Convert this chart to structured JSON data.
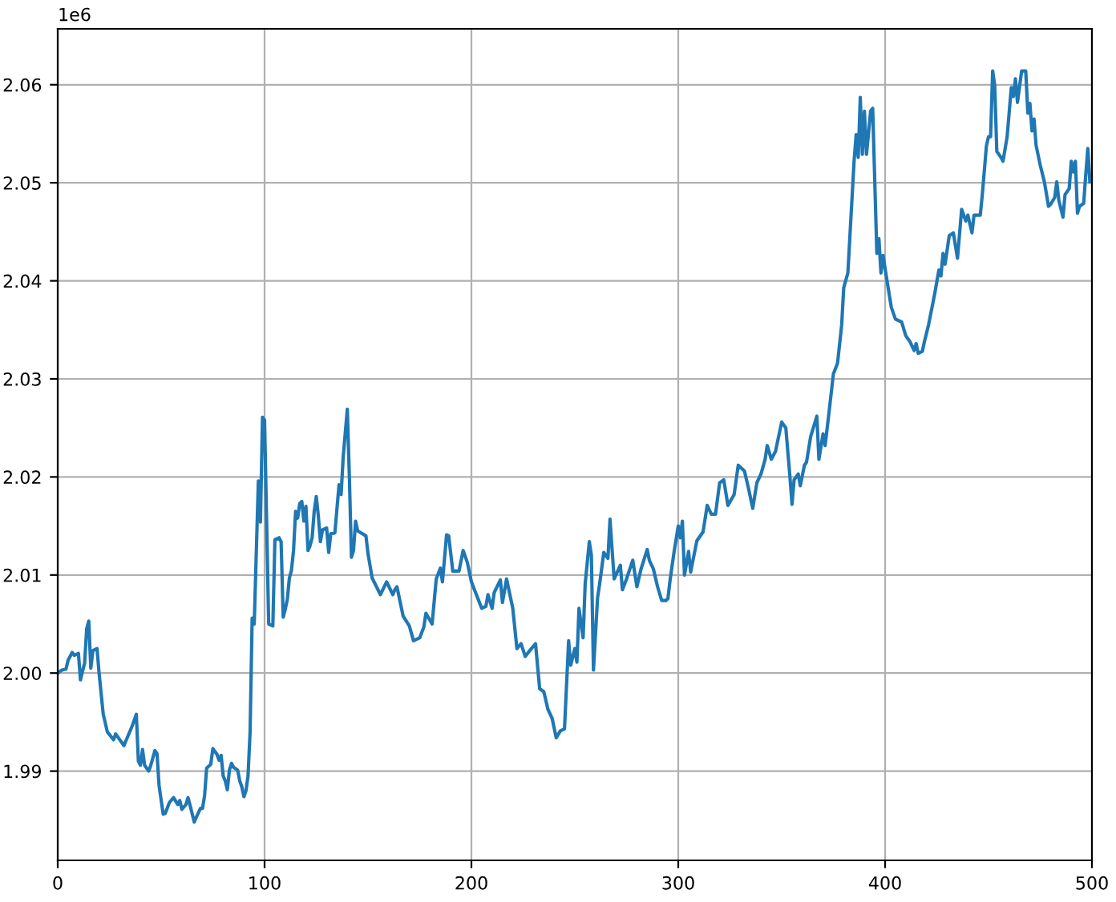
{
  "chart_data": {
    "type": "line",
    "x": [
      0,
      2,
      4,
      5,
      7,
      8,
      10,
      11,
      12,
      13,
      14,
      15,
      16,
      17,
      19,
      20,
      22,
      24,
      27,
      28,
      32,
      36,
      38,
      39,
      40,
      41,
      42,
      44,
      45,
      47,
      48,
      49,
      51,
      52,
      54,
      56,
      58,
      59,
      60,
      62,
      63,
      64,
      66,
      67,
      69,
      70,
      71,
      72,
      74,
      75,
      77,
      78,
      79,
      80,
      81,
      82,
      83,
      84,
      85,
      87,
      88,
      89,
      90,
      91,
      92,
      93,
      94,
      95,
      97,
      98,
      99,
      100,
      102,
      104,
      105,
      107,
      108,
      109,
      110,
      111,
      112,
      113,
      114,
      115,
      116,
      117,
      118,
      119,
      120,
      121,
      122,
      123,
      124,
      125,
      126,
      127,
      128,
      130,
      131,
      132,
      134,
      136,
      137,
      138,
      140,
      141,
      142,
      143,
      144,
      145,
      149,
      150,
      152,
      156,
      159,
      162,
      163,
      164,
      167,
      170,
      172,
      175,
      177,
      178,
      181,
      183,
      185,
      186,
      188,
      189,
      191,
      194,
      196,
      198,
      200,
      202,
      205,
      207,
      208,
      210,
      211,
      214,
      215,
      217,
      220,
      222,
      224,
      226,
      229,
      231,
      233,
      235,
      237,
      239,
      241,
      243,
      245,
      247,
      248,
      250,
      251,
      252,
      254,
      255,
      257,
      258,
      259,
      261,
      262,
      264,
      266,
      267,
      269,
      272,
      273,
      275,
      278,
      280,
      282,
      285,
      286,
      288,
      290,
      292,
      294,
      295,
      296,
      298,
      300,
      301,
      302,
      303,
      305,
      306,
      309,
      312,
      314,
      316,
      318,
      320,
      322,
      324,
      327,
      329,
      332,
      334,
      336,
      338,
      340,
      342,
      343,
      345,
      347,
      350,
      352,
      354,
      355,
      356,
      358,
      359,
      361,
      362,
      364,
      367,
      368,
      370,
      371,
      373,
      375,
      377,
      379,
      380,
      382,
      385,
      386,
      387,
      388,
      389,
      390,
      391,
      393,
      394,
      396,
      397,
      398,
      399,
      401,
      403,
      405,
      408,
      410,
      412,
      414,
      415,
      416,
      418,
      419,
      421,
      424,
      426,
      427,
      428,
      429,
      431,
      433,
      435,
      437,
      439,
      440,
      442,
      443,
      446,
      447,
      449,
      450,
      451,
      452,
      453,
      454,
      456,
      457,
      459,
      461,
      462,
      463,
      464,
      466,
      468,
      469,
      470,
      471,
      472,
      473,
      475,
      477,
      479,
      480,
      482,
      483,
      484,
      486,
      487,
      489,
      490,
      491,
      492,
      493,
      494,
      496,
      497,
      498,
      499
    ],
    "series": [
      {
        "color": "#1f77b4",
        "values": [
          2.0,
          2.0003,
          2.0004,
          2.0013,
          2.0021,
          2.0018,
          2.002,
          1.9993,
          2.0002,
          2.001,
          2.0045,
          2.0053,
          2.0005,
          2.0023,
          2.0025,
          2.0,
          1.9958,
          1.994,
          1.9932,
          1.9938,
          1.9926,
          1.9946,
          1.9958,
          1.991,
          1.9906,
          1.9922,
          1.9906,
          1.99,
          1.9906,
          1.9921,
          1.9918,
          1.9885,
          1.9856,
          1.9857,
          1.9868,
          1.9873,
          1.9866,
          1.987,
          1.9861,
          1.9866,
          1.9873,
          1.9865,
          1.9848,
          1.9853,
          1.9862,
          1.9862,
          1.9875,
          1.9903,
          1.9907,
          1.9923,
          1.9917,
          1.9911,
          1.9916,
          1.9895,
          1.989,
          1.9881,
          1.9901,
          1.9908,
          1.9904,
          1.9901,
          1.989,
          1.9884,
          1.9874,
          1.988,
          1.9895,
          1.994,
          2.0056,
          2.005,
          2.0196,
          2.0154,
          2.0261,
          2.0258,
          2.005,
          2.0048,
          2.0136,
          2.0138,
          2.0134,
          2.0057,
          2.0065,
          2.0075,
          2.0097,
          2.0105,
          2.0125,
          2.0165,
          2.0158,
          2.0173,
          2.0175,
          2.0155,
          2.017,
          2.0125,
          2.013,
          2.0138,
          2.0165,
          2.018,
          2.016,
          2.0134,
          2.0146,
          2.0148,
          2.0123,
          2.0142,
          2.0143,
          2.0192,
          2.0182,
          2.022,
          2.0269,
          2.02,
          2.0118,
          2.0125,
          2.0155,
          2.0145,
          2.014,
          2.0122,
          2.0097,
          2.008,
          2.0093,
          2.008,
          2.0085,
          2.0088,
          2.0058,
          2.0048,
          2.0033,
          2.0036,
          2.0047,
          2.0061,
          2.005,
          2.0096,
          2.0107,
          2.0093,
          2.0141,
          2.014,
          2.0104,
          2.0104,
          2.0125,
          2.0113,
          2.0093,
          2.0082,
          2.0066,
          2.0068,
          2.008,
          2.0066,
          2.0082,
          2.0095,
          2.0072,
          2.0096,
          2.0066,
          2.0025,
          2.003,
          2.0017,
          2.0025,
          2.003,
          1.9984,
          1.9981,
          1.9963,
          1.9954,
          1.9934,
          1.9941,
          1.9943,
          2.0033,
          2.0008,
          2.0025,
          2.0011,
          2.0066,
          2.0036,
          2.0091,
          2.0134,
          2.012,
          2.0003,
          2.0077,
          2.0091,
          2.0123,
          2.0117,
          2.0157,
          2.0096,
          2.011,
          2.0085,
          2.0096,
          2.0115,
          2.0088,
          2.0106,
          2.0126,
          2.0115,
          2.0106,
          2.0088,
          2.0074,
          2.0074,
          2.0076,
          2.0094,
          2.0124,
          2.015,
          2.0138,
          2.0155,
          2.01,
          2.0124,
          2.0103,
          2.0135,
          2.0144,
          2.0171,
          2.0162,
          2.0162,
          2.0194,
          2.0197,
          2.0171,
          2.0182,
          2.0212,
          2.0206,
          2.0188,
          2.0168,
          2.0194,
          2.0203,
          2.0218,
          2.0232,
          2.0218,
          2.0226,
          2.0256,
          2.025,
          2.02,
          2.0172,
          2.0197,
          2.0203,
          2.0191,
          2.0212,
          2.0215,
          2.0241,
          2.0262,
          2.0218,
          2.0244,
          2.0232,
          2.0268,
          2.0305,
          2.0316,
          2.0355,
          2.0393,
          2.0408,
          2.0522,
          2.0549,
          2.0526,
          2.0587,
          2.0529,
          2.0573,
          2.0529,
          2.0573,
          2.0576,
          2.0428,
          2.0443,
          2.0408,
          2.0426,
          2.0399,
          2.0373,
          2.0361,
          2.0358,
          2.0344,
          2.0338,
          2.0329,
          2.0336,
          2.0326,
          2.0328,
          2.0338,
          2.0355,
          2.0387,
          2.0411,
          2.0405,
          2.0428,
          2.0417,
          2.0446,
          2.0449,
          2.0423,
          2.0473,
          2.0461,
          2.0467,
          2.0449,
          2.0467,
          2.0467,
          2.0488,
          2.0538,
          2.0547,
          2.0547,
          2.0614,
          2.0599,
          2.0532,
          2.0526,
          2.0522,
          2.0547,
          2.0597,
          2.0588,
          2.0606,
          2.0582,
          2.0614,
          2.0614,
          2.0571,
          2.0581,
          2.0553,
          2.0565,
          2.0538,
          2.0518,
          2.0501,
          2.0476,
          2.0478,
          2.0485,
          2.0501,
          2.0482,
          2.0465,
          2.0488,
          2.0494,
          2.0522,
          2.0511,
          2.0522,
          2.0469,
          2.0476,
          2.0479,
          2.0508,
          2.0535,
          2.0501
        ]
      }
    ],
    "xlim": [
      0,
      500
    ],
    "xticks": [
      0,
      100,
      200,
      300,
      400,
      500
    ],
    "ylim": [
      1.9809,
      2.0657
    ],
    "yticks": [
      1.99,
      {
        "value": 2.0,
        "label": "2.00"
      },
      2.01,
      2.02,
      2.03,
      2.04,
      2.05,
      2.06
    ],
    "annotations": [
      "1e6"
    ],
    "grid": true
  }
}
